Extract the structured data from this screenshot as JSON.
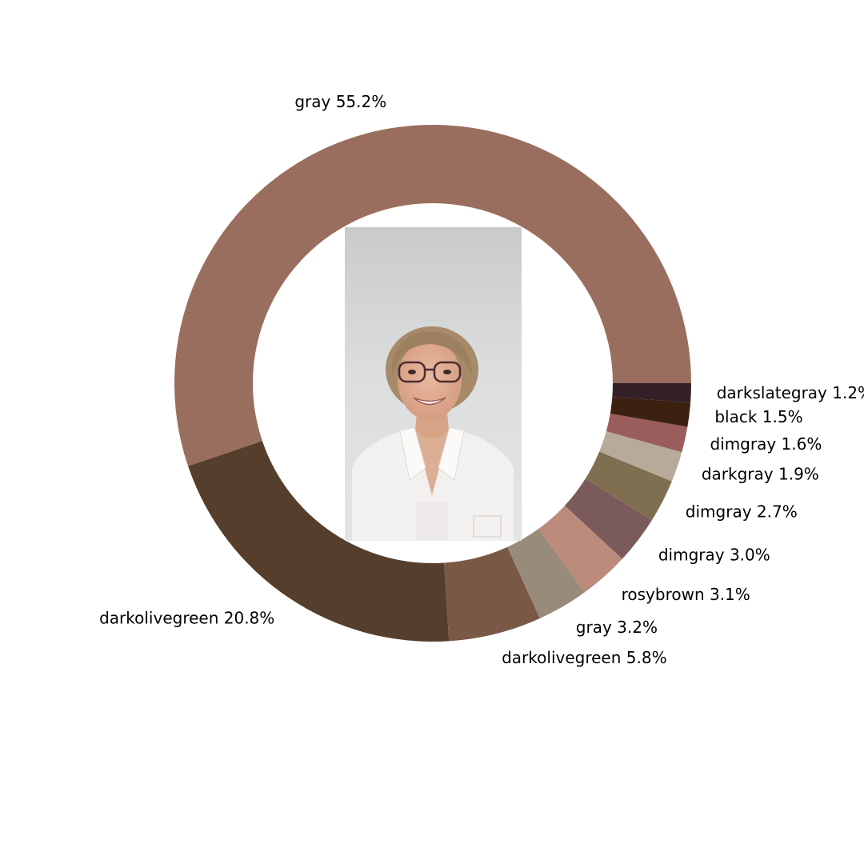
{
  "chart_data": {
    "type": "pie",
    "style": "donut",
    "start_angle": "3 o'clock",
    "direction": "counter-clockwise",
    "center_content": "photo",
    "slices": [
      {
        "label": "gray",
        "value": 55.2,
        "text": "gray 55.2%",
        "color": "#9a6e5e"
      },
      {
        "label": "darkolivegreen",
        "value": 20.8,
        "text": "darkolivegreen 20.8%",
        "color": "#553f2c"
      },
      {
        "label": "darkolivegreen",
        "value": 5.8,
        "text": "darkolivegreen 5.8%",
        "color": "#7a5846"
      },
      {
        "label": "gray",
        "value": 3.2,
        "text": "gray 3.2%",
        "color": "#988b7a"
      },
      {
        "label": "rosybrown",
        "value": 3.1,
        "text": "rosybrown 3.1%",
        "color": "#bc8b7c"
      },
      {
        "label": "dimgray",
        "value": 3.0,
        "text": "dimgray 3.0%",
        "color": "#7a5a5a"
      },
      {
        "label": "dimgray",
        "value": 2.7,
        "text": "dimgray 2.7%",
        "color": "#806e51"
      },
      {
        "label": "darkgray",
        "value": 1.9,
        "text": "darkgray 1.9%",
        "color": "#b8aa9b"
      },
      {
        "label": "dimgray",
        "value": 1.6,
        "text": "dimgray 1.6%",
        "color": "#9a5c5c"
      },
      {
        "label": "black",
        "value": 1.5,
        "text": "black 1.5%",
        "color": "#3c2010"
      },
      {
        "label": "darkslategray",
        "value": 1.2,
        "text": "darkslategray 1.2%",
        "color": "#352029"
      }
    ]
  }
}
